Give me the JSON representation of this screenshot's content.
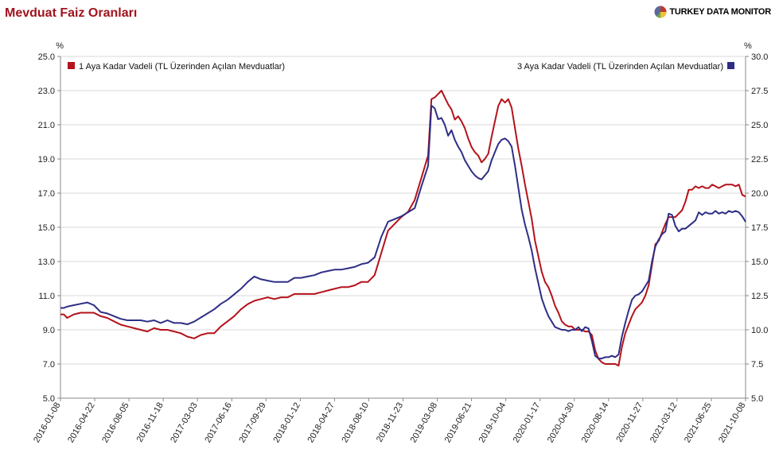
{
  "header": {
    "title": "Mevduat Faiz Oranları",
    "brand": "TURKEY DATA MONITOR",
    "brand_logo": "pie-chart-logo-icon"
  },
  "colors": {
    "series1": "#b5121b",
    "series2": "#2e2e86",
    "grid": "#d9d9d9",
    "axis": "#888888",
    "title": "#a0141e"
  },
  "chart_data": {
    "type": "line",
    "title": "Mevduat Faiz Oranları",
    "left_axis": {
      "unit": "%",
      "min": 5.0,
      "max": 25.0,
      "ticks": [
        "5.0",
        "7.0",
        "9.0",
        "11.0",
        "13.0",
        "15.0",
        "17.0",
        "19.0",
        "21.0",
        "23.0",
        "25.0"
      ]
    },
    "right_axis": {
      "unit": "%",
      "min": 5.0,
      "max": 30.0,
      "ticks": [
        "5.0",
        "7.5",
        "10.0",
        "12.5",
        "15.0",
        "17.5",
        "20.0",
        "22.5",
        "25.0",
        "27.5",
        "30.0"
      ]
    },
    "x_ticks": [
      "2016-01-08",
      "2016-04-22",
      "2016-08-05",
      "2016-11-18",
      "2017-03-03",
      "2017-06-16",
      "2017-09-29",
      "2018-01-12",
      "2018-04-27",
      "2018-08-10",
      "2018-11-23",
      "2019-03-08",
      "2019-06-21",
      "2019-10-04",
      "2020-01-17",
      "2020-04-30",
      "2020-08-14",
      "2020-11-27",
      "2021-03-12",
      "2021-06-25",
      "2021-10-08"
    ],
    "grid": true,
    "legend": [
      "top-left",
      "top-right"
    ],
    "series": [
      {
        "name": "1 Aya Kadar Vadeli (TL Üzerinden Açılan Mevduatlar)",
        "axis": "left",
        "color": "#b5121b",
        "points": [
          [
            0,
            9.9
          ],
          [
            1,
            9.9
          ],
          [
            2,
            9.7
          ],
          [
            4,
            9.9
          ],
          [
            6,
            10.0
          ],
          [
            8,
            10.0
          ],
          [
            10,
            10.0
          ],
          [
            12,
            9.8
          ],
          [
            14,
            9.7
          ],
          [
            16,
            9.5
          ],
          [
            18,
            9.3
          ],
          [
            20,
            9.2
          ],
          [
            22,
            9.1
          ],
          [
            24,
            9.0
          ],
          [
            26,
            8.9
          ],
          [
            28,
            9.1
          ],
          [
            30,
            9.0
          ],
          [
            32,
            9.0
          ],
          [
            34,
            8.9
          ],
          [
            36,
            8.8
          ],
          [
            38,
            8.6
          ],
          [
            40,
            8.5
          ],
          [
            42,
            8.7
          ],
          [
            44,
            8.8
          ],
          [
            46,
            8.8
          ],
          [
            48,
            9.2
          ],
          [
            50,
            9.5
          ],
          [
            52,
            9.8
          ],
          [
            54,
            10.2
          ],
          [
            56,
            10.5
          ],
          [
            58,
            10.7
          ],
          [
            60,
            10.8
          ],
          [
            62,
            10.9
          ],
          [
            64,
            10.8
          ],
          [
            66,
            10.9
          ],
          [
            68,
            10.9
          ],
          [
            70,
            11.1
          ],
          [
            72,
            11.1
          ],
          [
            74,
            11.1
          ],
          [
            76,
            11.1
          ],
          [
            78,
            11.2
          ],
          [
            80,
            11.3
          ],
          [
            82,
            11.4
          ],
          [
            84,
            11.5
          ],
          [
            86,
            11.5
          ],
          [
            88,
            11.6
          ],
          [
            90,
            11.8
          ],
          [
            92,
            11.8
          ],
          [
            94,
            12.2
          ],
          [
            96,
            13.5
          ],
          [
            98,
            14.8
          ],
          [
            100,
            15.2
          ],
          [
            102,
            15.6
          ],
          [
            104,
            15.9
          ],
          [
            106,
            16.6
          ],
          [
            108,
            17.9
          ],
          [
            110,
            19.2
          ],
          [
            111,
            22.5
          ],
          [
            112,
            22.6
          ],
          [
            113,
            22.8
          ],
          [
            114,
            23.0
          ],
          [
            115,
            22.6
          ],
          [
            116,
            22.2
          ],
          [
            117,
            21.9
          ],
          [
            118,
            21.3
          ],
          [
            119,
            21.5
          ],
          [
            120,
            21.2
          ],
          [
            121,
            20.8
          ],
          [
            122,
            20.2
          ],
          [
            123,
            19.7
          ],
          [
            124,
            19.4
          ],
          [
            125,
            19.2
          ],
          [
            126,
            18.8
          ],
          [
            127,
            19.0
          ],
          [
            128,
            19.3
          ],
          [
            129,
            20.3
          ],
          [
            130,
            21.2
          ],
          [
            131,
            22.1
          ],
          [
            132,
            22.5
          ],
          [
            133,
            22.3
          ],
          [
            134,
            22.5
          ],
          [
            135,
            22.0
          ],
          [
            136,
            20.8
          ],
          [
            137,
            19.6
          ],
          [
            138,
            18.6
          ],
          [
            139,
            17.5
          ],
          [
            140,
            16.5
          ],
          [
            141,
            15.5
          ],
          [
            142,
            14.2
          ],
          [
            143,
            13.3
          ],
          [
            144,
            12.4
          ],
          [
            145,
            11.8
          ],
          [
            146,
            11.5
          ],
          [
            147,
            11.0
          ],
          [
            148,
            10.4
          ],
          [
            149,
            10.0
          ],
          [
            150,
            9.5
          ],
          [
            151,
            9.3
          ],
          [
            152,
            9.2
          ],
          [
            153,
            9.2
          ],
          [
            154,
            9.0
          ],
          [
            155,
            9.0
          ],
          [
            156,
            9.0
          ],
          [
            157,
            8.9
          ],
          [
            158,
            8.9
          ],
          [
            159,
            8.7
          ],
          [
            160,
            7.8
          ],
          [
            161,
            7.3
          ],
          [
            162,
            7.1
          ],
          [
            163,
            7.0
          ],
          [
            164,
            7.0
          ],
          [
            165,
            7.0
          ],
          [
            166,
            7.0
          ],
          [
            167,
            6.9
          ],
          [
            168,
            8.0
          ],
          [
            169,
            8.8
          ],
          [
            170,
            9.3
          ],
          [
            171,
            9.8
          ],
          [
            172,
            10.2
          ],
          [
            173,
            10.4
          ],
          [
            174,
            10.6
          ],
          [
            175,
            11.0
          ],
          [
            176,
            11.6
          ],
          [
            177,
            12.8
          ],
          [
            178,
            14.0
          ],
          [
            179,
            14.2
          ],
          [
            180,
            14.7
          ],
          [
            181,
            15.2
          ],
          [
            182,
            15.6
          ],
          [
            183,
            15.6
          ],
          [
            184,
            15.6
          ],
          [
            185,
            15.8
          ],
          [
            186,
            16.0
          ],
          [
            187,
            16.5
          ],
          [
            188,
            17.2
          ],
          [
            189,
            17.2
          ],
          [
            190,
            17.4
          ],
          [
            191,
            17.3
          ],
          [
            192,
            17.4
          ],
          [
            193,
            17.3
          ],
          [
            194,
            17.3
          ],
          [
            195,
            17.5
          ],
          [
            196,
            17.4
          ],
          [
            197,
            17.3
          ],
          [
            198,
            17.4
          ],
          [
            199,
            17.5
          ],
          [
            200,
            17.5
          ],
          [
            201,
            17.5
          ],
          [
            202,
            17.4
          ],
          [
            203,
            17.5
          ],
          [
            204,
            16.9
          ],
          [
            205,
            16.8
          ]
        ]
      },
      {
        "name": "3 Aya Kadar Vadeli (TL Üzerinden Açılan Mevduatlar)",
        "axis": "right",
        "color": "#2e2e86",
        "points": [
          [
            0,
            11.6
          ],
          [
            1,
            11.6
          ],
          [
            2,
            11.7
          ],
          [
            4,
            11.8
          ],
          [
            6,
            11.9
          ],
          [
            8,
            12.0
          ],
          [
            10,
            11.8
          ],
          [
            12,
            11.3
          ],
          [
            14,
            11.2
          ],
          [
            16,
            11.0
          ],
          [
            18,
            10.8
          ],
          [
            20,
            10.7
          ],
          [
            22,
            10.7
          ],
          [
            24,
            10.7
          ],
          [
            26,
            10.6
          ],
          [
            28,
            10.7
          ],
          [
            30,
            10.5
          ],
          [
            32,
            10.7
          ],
          [
            34,
            10.5
          ],
          [
            36,
            10.5
          ],
          [
            38,
            10.4
          ],
          [
            40,
            10.6
          ],
          [
            42,
            10.9
          ],
          [
            44,
            11.2
          ],
          [
            46,
            11.5
          ],
          [
            48,
            11.9
          ],
          [
            50,
            12.2
          ],
          [
            52,
            12.6
          ],
          [
            54,
            13.0
          ],
          [
            56,
            13.5
          ],
          [
            58,
            13.9
          ],
          [
            60,
            13.7
          ],
          [
            62,
            13.6
          ],
          [
            64,
            13.5
          ],
          [
            66,
            13.5
          ],
          [
            68,
            13.5
          ],
          [
            70,
            13.8
          ],
          [
            72,
            13.8
          ],
          [
            74,
            13.9
          ],
          [
            76,
            14.0
          ],
          [
            78,
            14.2
          ],
          [
            80,
            14.3
          ],
          [
            82,
            14.4
          ],
          [
            84,
            14.4
          ],
          [
            86,
            14.5
          ],
          [
            88,
            14.6
          ],
          [
            90,
            14.8
          ],
          [
            92,
            14.9
          ],
          [
            94,
            15.3
          ],
          [
            96,
            16.8
          ],
          [
            98,
            17.9
          ],
          [
            100,
            18.1
          ],
          [
            102,
            18.3
          ],
          [
            104,
            18.6
          ],
          [
            106,
            18.9
          ],
          [
            108,
            20.5
          ],
          [
            110,
            22.0
          ],
          [
            111,
            26.4
          ],
          [
            112,
            26.2
          ],
          [
            113,
            25.4
          ],
          [
            114,
            25.5
          ],
          [
            115,
            25.0
          ],
          [
            116,
            24.2
          ],
          [
            117,
            24.6
          ],
          [
            118,
            23.9
          ],
          [
            119,
            23.4
          ],
          [
            120,
            23.0
          ],
          [
            121,
            22.4
          ],
          [
            122,
            22.0
          ],
          [
            123,
            21.6
          ],
          [
            124,
            21.3
          ],
          [
            125,
            21.1
          ],
          [
            126,
            21.0
          ],
          [
            127,
            21.3
          ],
          [
            128,
            21.6
          ],
          [
            129,
            22.4
          ],
          [
            130,
            23.0
          ],
          [
            131,
            23.6
          ],
          [
            132,
            23.9
          ],
          [
            133,
            24.0
          ],
          [
            134,
            23.8
          ],
          [
            135,
            23.4
          ],
          [
            136,
            22.0
          ],
          [
            137,
            20.4
          ],
          [
            138,
            18.8
          ],
          [
            139,
            17.7
          ],
          [
            140,
            16.8
          ],
          [
            141,
            15.8
          ],
          [
            142,
            14.5
          ],
          [
            143,
            13.4
          ],
          [
            144,
            12.3
          ],
          [
            145,
            11.6
          ],
          [
            146,
            11.0
          ],
          [
            147,
            10.6
          ],
          [
            148,
            10.2
          ],
          [
            149,
            10.1
          ],
          [
            150,
            10.0
          ],
          [
            151,
            10.0
          ],
          [
            152,
            9.9
          ],
          [
            153,
            10.0
          ],
          [
            154,
            10.0
          ],
          [
            155,
            10.2
          ],
          [
            156,
            9.9
          ],
          [
            157,
            10.2
          ],
          [
            158,
            10.1
          ],
          [
            159,
            9.2
          ],
          [
            160,
            8.1
          ],
          [
            161,
            7.9
          ],
          [
            162,
            7.9
          ],
          [
            163,
            8.0
          ],
          [
            164,
            8.0
          ],
          [
            165,
            8.1
          ],
          [
            166,
            8.0
          ],
          [
            167,
            8.2
          ],
          [
            168,
            9.5
          ],
          [
            169,
            10.5
          ],
          [
            170,
            11.4
          ],
          [
            171,
            12.2
          ],
          [
            172,
            12.5
          ],
          [
            173,
            12.6
          ],
          [
            174,
            12.8
          ],
          [
            175,
            13.2
          ],
          [
            176,
            13.6
          ],
          [
            177,
            15.0
          ],
          [
            178,
            16.1
          ],
          [
            179,
            16.6
          ],
          [
            180,
            17.0
          ],
          [
            181,
            17.2
          ],
          [
            182,
            18.5
          ],
          [
            183,
            18.4
          ],
          [
            184,
            17.6
          ],
          [
            185,
            17.2
          ],
          [
            186,
            17.4
          ],
          [
            187,
            17.4
          ],
          [
            188,
            17.6
          ],
          [
            189,
            17.8
          ],
          [
            190,
            18.0
          ],
          [
            191,
            18.6
          ],
          [
            192,
            18.4
          ],
          [
            193,
            18.6
          ],
          [
            194,
            18.5
          ],
          [
            195,
            18.5
          ],
          [
            196,
            18.7
          ],
          [
            197,
            18.5
          ],
          [
            198,
            18.6
          ],
          [
            199,
            18.5
          ],
          [
            200,
            18.7
          ],
          [
            201,
            18.6
          ],
          [
            202,
            18.7
          ],
          [
            203,
            18.6
          ],
          [
            204,
            18.3
          ],
          [
            205,
            17.9
          ]
        ]
      }
    ]
  }
}
